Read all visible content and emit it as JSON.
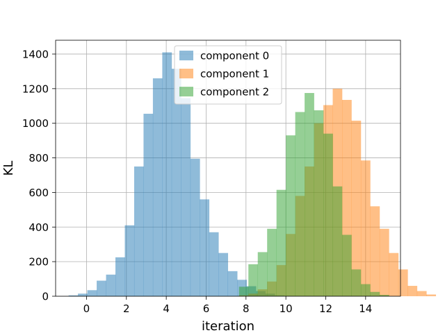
{
  "chart_data": {
    "type": "bar",
    "title": "",
    "xlabel": "iteration",
    "ylabel": "KL",
    "xlim": [
      -1.55,
      15.75
    ],
    "ylim": [
      0,
      1480
    ],
    "xticks": [
      0,
      2,
      4,
      6,
      8,
      10,
      12,
      14
    ],
    "xtick_labels": [
      "0",
      "2",
      "4",
      "6",
      "8",
      "10",
      "12",
      "14"
    ],
    "yticks": [
      0,
      200,
      400,
      600,
      800,
      1000,
      1200,
      1400
    ],
    "ytick_labels": [
      "0",
      "200",
      "400",
      "600",
      "800",
      "1000",
      "1200",
      "1400"
    ],
    "grid": true,
    "legend_position": "upper center",
    "series": [
      {
        "name": "component 0",
        "color": "#1f77b4",
        "alpha": 0.5,
        "bin_start": -0.9,
        "bin_width": 0.47,
        "values": [
          5,
          15,
          35,
          90,
          125,
          225,
          410,
          750,
          1055,
          1260,
          1410,
          1315,
          1145,
          795,
          560,
          370,
          250,
          145,
          95,
          58,
          30,
          15,
          5,
          2
        ]
      },
      {
        "name": "component 1",
        "color": "#ff7f0e",
        "alpha": 0.5,
        "bin_start": 7.65,
        "bin_width": 0.47,
        "values": [
          5,
          15,
          40,
          85,
          180,
          360,
          580,
          750,
          1000,
          1105,
          1200,
          1135,
          1015,
          785,
          520,
          390,
          250,
          155,
          60,
          30,
          10
        ]
      },
      {
        "name": "component 2",
        "color": "#2ca02c",
        "alpha": 0.5,
        "bin_start": 7.65,
        "bin_width": 0.47,
        "values": [
          55,
          185,
          255,
          390,
          615,
          930,
          1065,
          1175,
          1075,
          940,
          635,
          355,
          155,
          70,
          25,
          8
        ]
      }
    ]
  }
}
